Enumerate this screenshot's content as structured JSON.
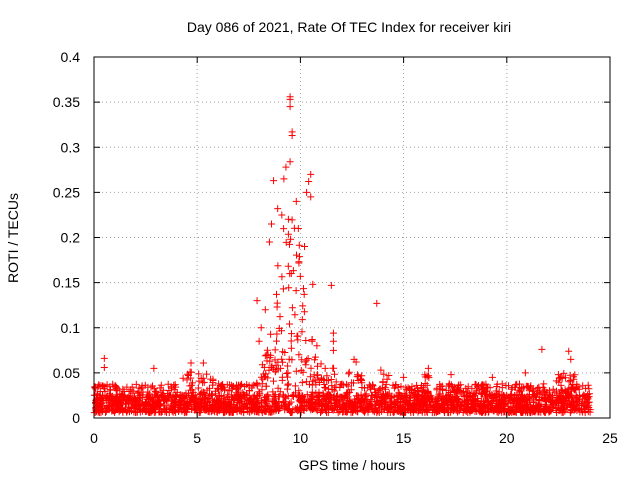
{
  "chart_data": {
    "type": "scatter",
    "title": "Day 086 of 2021, Rate Of TEC Index for receiver kiri",
    "xlabel": "GPS time / hours",
    "ylabel": "ROTI / TECUs",
    "xlim": [
      0,
      25
    ],
    "ylim": [
      0,
      0.4
    ],
    "x_ticks": [
      0,
      5,
      10,
      15,
      20,
      25
    ],
    "x_tick_labels": [
      "0",
      "5",
      "10",
      "15",
      "20",
      "25"
    ],
    "y_ticks": [
      0,
      0.05,
      0.1,
      0.15,
      0.2,
      0.25,
      0.3,
      0.35,
      0.4
    ],
    "y_tick_labels": [
      "0",
      "0.05",
      "0.1",
      "0.15",
      "0.2",
      "0.25",
      "0.3",
      "0.35",
      "0.4"
    ],
    "grid": true,
    "marker": "+",
    "marker_color": "#ff0000",
    "series": [
      {
        "name": "ROTI",
        "points": [
          [
            0.5,
            0.066
          ],
          [
            0.5,
            0.056
          ],
          [
            2.9,
            0.055
          ],
          [
            4.7,
            0.061
          ],
          [
            5.3,
            0.061
          ],
          [
            9.5,
            0.356
          ],
          [
            9.5,
            0.353
          ],
          [
            9.5,
            0.345
          ],
          [
            9.6,
            0.317
          ],
          [
            9.6,
            0.313
          ],
          [
            9.5,
            0.284
          ],
          [
            9.3,
            0.278
          ],
          [
            9.2,
            0.265
          ],
          [
            8.7,
            0.263
          ],
          [
            10.5,
            0.27
          ],
          [
            10.4,
            0.262
          ],
          [
            10.3,
            0.25
          ],
          [
            10.5,
            0.245
          ],
          [
            9.8,
            0.24
          ],
          [
            8.9,
            0.232
          ],
          [
            9.1,
            0.225
          ],
          [
            8.6,
            0.215
          ],
          [
            9.9,
            0.21
          ],
          [
            8.5,
            0.195
          ],
          [
            10.2,
            0.19
          ],
          [
            10.6,
            0.148
          ],
          [
            11.5,
            0.147
          ],
          [
            13.7,
            0.127
          ],
          [
            11.6,
            0.094
          ],
          [
            11.6,
            0.085
          ],
          [
            11.6,
            0.075
          ],
          [
            12.6,
            0.065
          ],
          [
            12.7,
            0.062
          ],
          [
            16.2,
            0.055
          ],
          [
            17.3,
            0.048
          ],
          [
            21.7,
            0.076
          ],
          [
            23.0,
            0.074
          ],
          [
            23.1,
            0.065
          ],
          [
            20.9,
            0.05
          ],
          [
            22.5,
            0.048
          ],
          [
            7.9,
            0.13
          ],
          [
            8.1,
            0.1
          ],
          [
            8.3,
            0.12
          ],
          [
            8.0,
            0.085
          ],
          [
            10.8,
            0.08
          ],
          [
            11.0,
            0.06
          ],
          [
            11.2,
            0.055
          ],
          [
            13.9,
            0.053
          ],
          [
            15.0,
            0.045
          ],
          [
            19.3,
            0.045
          ]
        ]
      }
    ]
  }
}
